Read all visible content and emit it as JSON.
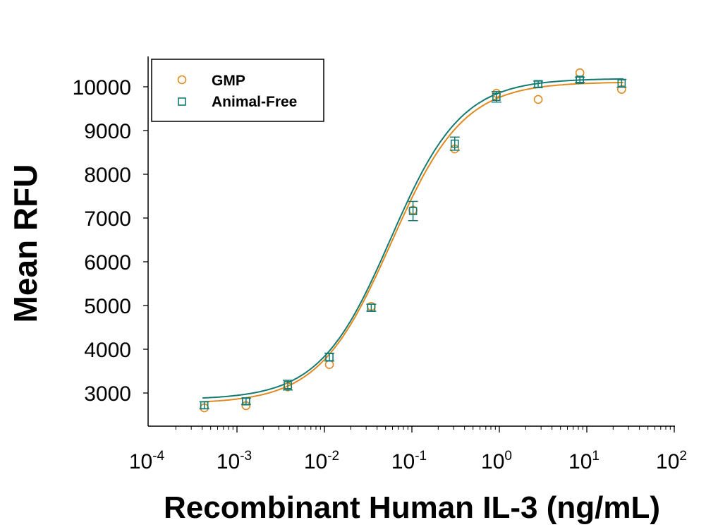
{
  "chart_data": {
    "type": "scatter",
    "title": "",
    "xlabel": "Recombinant Human IL-3 (ng/mL)",
    "ylabel": "Mean RFU",
    "xscale": "log",
    "xlim": [
      0.0001,
      100
    ],
    "ylim": [
      2240,
      10700
    ],
    "xticks": [
      {
        "base": "10",
        "exp": "-4",
        "value": 0.0001
      },
      {
        "base": "10",
        "exp": "-3",
        "value": 0.001
      },
      {
        "base": "10",
        "exp": "-2",
        "value": 0.01
      },
      {
        "base": "10",
        "exp": "-1",
        "value": 0.1
      },
      {
        "base": "10",
        "exp": "0",
        "value": 1
      },
      {
        "base": "10",
        "exp": "1",
        "value": 10
      },
      {
        "base": "10",
        "exp": "2",
        "value": 100
      }
    ],
    "yticks": [
      3000,
      4000,
      5000,
      6000,
      7000,
      8000,
      9000,
      10000
    ],
    "ytick_labels": [
      "3000",
      "4000",
      "5000",
      "6000",
      "7000",
      "8000",
      "9000",
      "10000"
    ],
    "grid": false,
    "legend_position": "top-left",
    "x": [
      0.000423,
      0.00127,
      0.00381,
      0.0114,
      0.0343,
      0.103,
      0.309,
      0.926,
      2.78,
      8.33,
      25
    ],
    "series": [
      {
        "name": "GMP",
        "marker": "circle",
        "color": "#E08A1E",
        "values": [
          2660,
          2710,
          3140,
          3650,
          4980,
          7180,
          8580,
          9850,
          9710,
          10320,
          9940
        ],
        "fit": {
          "model": "4PL",
          "bottom": 2760,
          "top": 10110,
          "ec50": 0.058,
          "hill": 1.05
        }
      },
      {
        "name": "Animal-Free",
        "marker": "square",
        "color": "#147A72",
        "values": [
          2720,
          2810,
          3180,
          3820,
          4950,
          7160,
          8700,
          9770,
          10060,
          10160,
          10080
        ],
        "errors": [
          80,
          70,
          110,
          90,
          80,
          220,
          150,
          120,
          70,
          60,
          90
        ],
        "fit": {
          "model": "4PL",
          "bottom": 2850,
          "top": 10190,
          "ec50": 0.057,
          "hill": 1.07
        }
      }
    ]
  }
}
